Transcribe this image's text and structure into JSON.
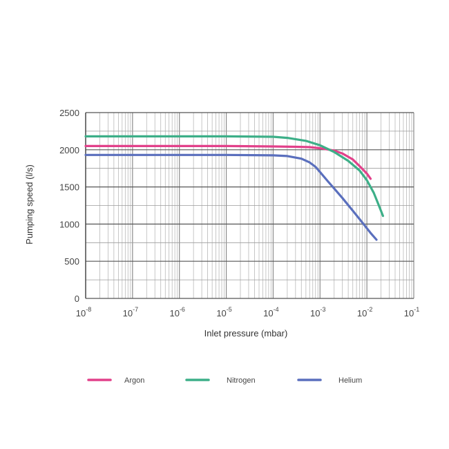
{
  "chart_data": {
    "type": "line",
    "title": "",
    "xlabel": "Inlet pressure (mbar)",
    "ylabel": "Pumping speed (l/s)",
    "xscale": "log",
    "xlim": [
      1e-08,
      0.1
    ],
    "ylim": [
      0,
      2500
    ],
    "grid": true,
    "legend_position": "bottom",
    "x_ticks": [
      {
        "base": "10",
        "exp": "-8"
      },
      {
        "base": "10",
        "exp": "-7"
      },
      {
        "base": "10",
        "exp": "-6"
      },
      {
        "base": "10",
        "exp": "-5"
      },
      {
        "base": "10",
        "exp": "-4"
      },
      {
        "base": "10",
        "exp": "-3"
      },
      {
        "base": "10",
        "exp": "-2"
      },
      {
        "base": "10",
        "exp": "-1"
      }
    ],
    "y_ticks": [
      "0",
      "500",
      "1000",
      "1500",
      "2000",
      "2500"
    ],
    "series": [
      {
        "name": "Argon",
        "color": "#e2408a",
        "x": [
          1e-08,
          1e-07,
          1e-06,
          1e-05,
          0.0001,
          0.0003,
          0.0006,
          0.001,
          0.002,
          0.003,
          0.005,
          0.007,
          0.01,
          0.012
        ],
        "y": [
          2050,
          2050,
          2050,
          2050,
          2045,
          2040,
          2035,
          2020,
          1990,
          1950,
          1870,
          1780,
          1680,
          1610
        ]
      },
      {
        "name": "Nitrogen",
        "color": "#3daf88",
        "x": [
          1e-08,
          1e-07,
          1e-06,
          1e-05,
          0.0001,
          0.0002,
          0.0005,
          0.001,
          0.002,
          0.004,
          0.007,
          0.01,
          0.014,
          0.018,
          0.022
        ],
        "y": [
          2180,
          2180,
          2180,
          2180,
          2175,
          2160,
          2120,
          2060,
          1970,
          1850,
          1720,
          1590,
          1420,
          1250,
          1110
        ]
      },
      {
        "name": "Helium",
        "color": "#5a6fbd",
        "x": [
          1e-08,
          1e-07,
          1e-06,
          1e-05,
          0.0001,
          0.0002,
          0.0004,
          0.0006,
          0.0008,
          0.001,
          0.0015,
          0.002,
          0.003,
          0.005,
          0.008,
          0.012,
          0.016
        ],
        "y": [
          1930,
          1930,
          1930,
          1930,
          1925,
          1915,
          1880,
          1830,
          1770,
          1700,
          1570,
          1480,
          1350,
          1180,
          1020,
          880,
          790
        ]
      }
    ]
  }
}
